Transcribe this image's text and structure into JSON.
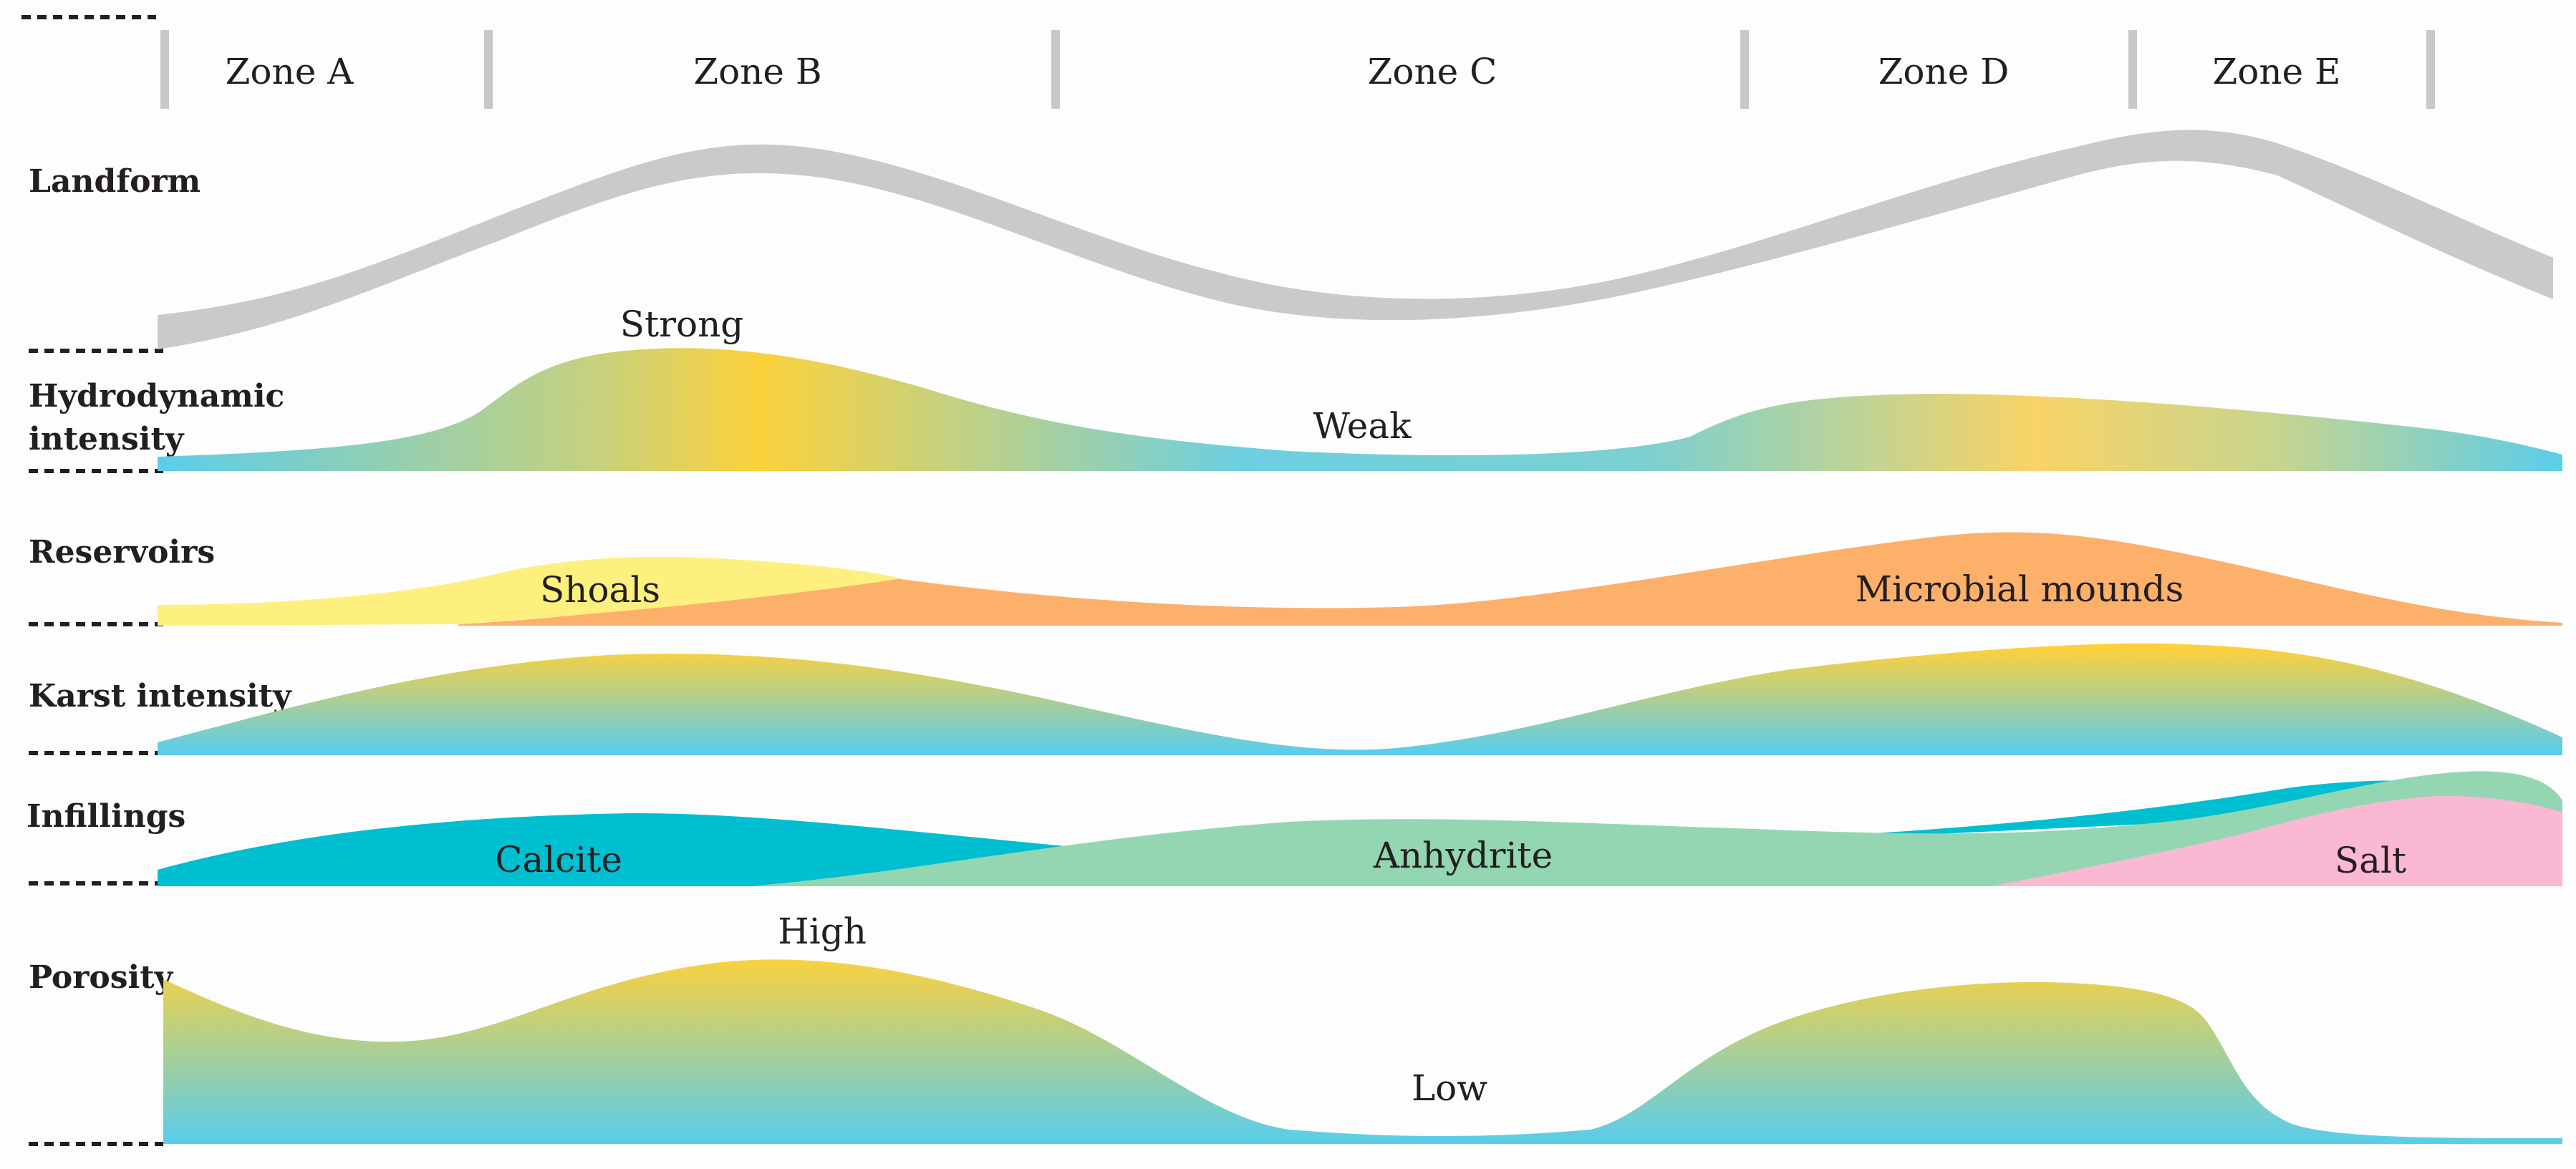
{
  "zones": [
    "Zone A",
    "Zone B",
    "Zone C",
    "Zone D",
    "Zone E"
  ],
  "rows": {
    "landform": "Landform",
    "hydro_line1": "Hydrodynamic",
    "hydro_line2": "intensity",
    "reservoirs": "Reservoirs",
    "karst": "Karst intensity",
    "infillings": "Infillings",
    "porosity": "Porosity"
  },
  "labels": {
    "strong": "Strong",
    "weak": "Weak",
    "shoals": "Shoals",
    "microbial": "Microbial mounds",
    "calcite": "Calcite",
    "anhydrite": "Anhydrite",
    "salt": "Salt",
    "high": "High",
    "low": "Low"
  },
  "colors": {
    "landform": "#c9caca",
    "low_blue": "#5bcdea",
    "high_yellow": "#fdd13b",
    "mid_green": "#8fd3b9",
    "shoals": "#fdf07e",
    "microbial": "#fcb06a",
    "calcite": "#00bfd1",
    "anhydrite": "#93d6b1",
    "salt": "#fbb8d3"
  }
}
